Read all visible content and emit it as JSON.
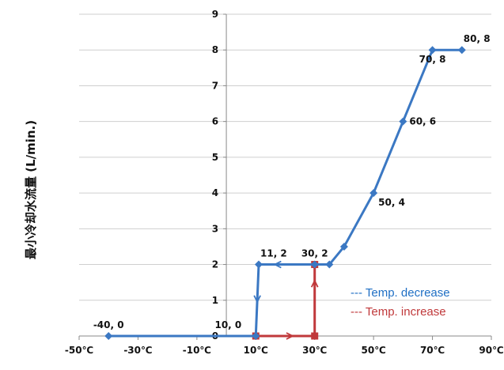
{
  "chart_data": {
    "type": "line",
    "ylabel": "最小冷却水流量 (L/min.)",
    "xlabel": "",
    "xlim": [
      -50,
      90
    ],
    "ylim": [
      0,
      9
    ],
    "x_ticks": [
      "-50℃",
      "-30℃",
      "-10℃",
      "10℃",
      "30℃",
      "50℃",
      "70℃",
      "90℃"
    ],
    "y_ticks": [
      "0",
      "1",
      "2",
      "3",
      "4",
      "5",
      "6",
      "7",
      "8",
      "9"
    ],
    "grid": "horizontal",
    "series": [
      {
        "name": "--- Temp. decrease",
        "color": "#3b78c3",
        "marker": "diamond",
        "points": [
          {
            "x": 80,
            "y": 8
          },
          {
            "x": 70,
            "y": 8
          },
          {
            "x": 60,
            "y": 6
          },
          {
            "x": 50,
            "y": 4
          },
          {
            "x": 40,
            "y": 2.5
          },
          {
            "x": 35,
            "y": 2
          },
          {
            "x": 30,
            "y": 2
          },
          {
            "x": 11,
            "y": 2
          },
          {
            "x": 10,
            "y": 0
          },
          {
            "x": -40,
            "y": 0
          }
        ],
        "arrows": [
          {
            "x": 10.5,
            "y": 1,
            "direction": "down"
          },
          {
            "x": 17,
            "y": 2,
            "direction": "left"
          }
        ]
      },
      {
        "name": "--- Temp. increase",
        "color": "#c0393b",
        "marker": "square",
        "points": [
          {
            "x": 10,
            "y": 0
          },
          {
            "x": 30,
            "y": 0
          },
          {
            "x": 30,
            "y": 2
          }
        ],
        "arrows": [
          {
            "x": 22,
            "y": 0,
            "direction": "right"
          },
          {
            "x": 30,
            "y": 1.5,
            "direction": "up"
          }
        ]
      }
    ],
    "annotations": [
      {
        "text": "-40, 0",
        "x": -40,
        "y": 0,
        "pos": "above"
      },
      {
        "text": "10, 0",
        "x": 10,
        "y": 0,
        "pos": "above-left"
      },
      {
        "text": "11, 2",
        "x": 11,
        "y": 2,
        "pos": "above-right"
      },
      {
        "text": "30, 2",
        "x": 30,
        "y": 2,
        "pos": "above"
      },
      {
        "text": "50, 4",
        "x": 50,
        "y": 4,
        "pos": "below-right"
      },
      {
        "text": "60, 6",
        "x": 60,
        "y": 6,
        "pos": "right"
      },
      {
        "text": "70, 8",
        "x": 70,
        "y": 8,
        "pos": "below"
      },
      {
        "text": "80, 8",
        "x": 80,
        "y": 8,
        "pos": "above-right"
      }
    ],
    "legend": {
      "position": "bottom-right",
      "items": [
        {
          "text": "--- Temp. decrease",
          "color": "#1f6fc4"
        },
        {
          "text": "--- Temp. increase",
          "color": "#c0393b"
        }
      ]
    }
  }
}
